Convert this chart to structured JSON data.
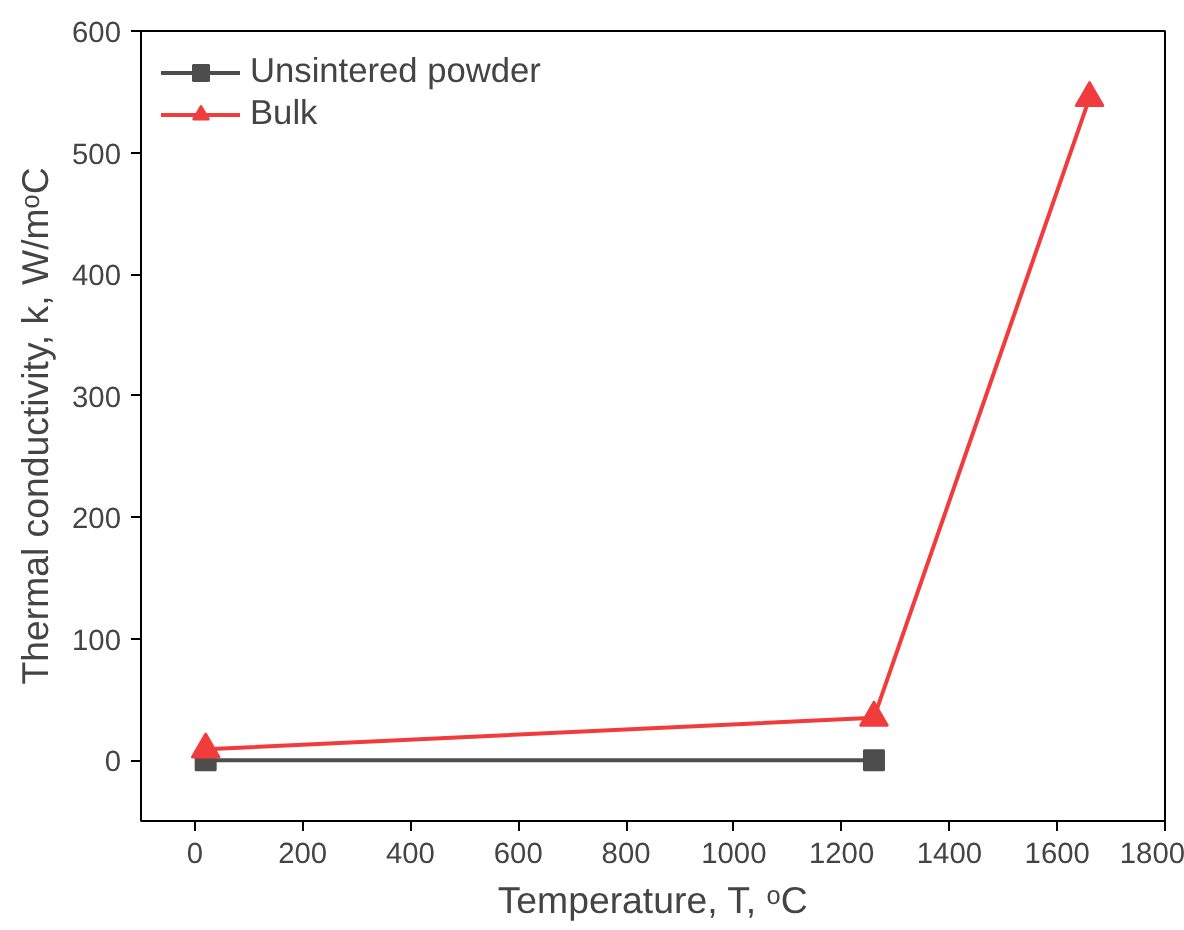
{
  "chart_data": {
    "type": "line",
    "xlabel": "Temperature, T, ᵒC",
    "ylabel": "Thermal conductivity, k, W/mᵒC",
    "xlim": [
      -100,
      1800
    ],
    "xticks": [
      0,
      200,
      400,
      600,
      800,
      1000,
      1200,
      1400,
      1600,
      1800
    ],
    "ylim": [
      -50,
      600
    ],
    "yticks": [
      0,
      100,
      200,
      300,
      400,
      500,
      600
    ],
    "grid": false,
    "legend": "top left",
    "series": [
      {
        "name": "Unsintered powder",
        "color": "#4d4d4d",
        "marker": "square",
        "x": [
          20,
          1260
        ],
        "values": [
          0,
          0
        ]
      },
      {
        "name": "Bulk",
        "color": "#f03c3c",
        "marker": "triangle",
        "x": [
          20,
          1260,
          1660
        ],
        "values": [
          9,
          35,
          545
        ]
      }
    ]
  }
}
